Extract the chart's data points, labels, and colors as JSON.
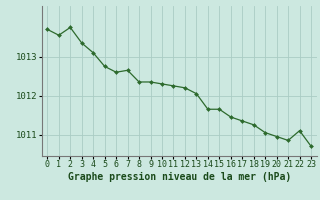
{
  "x": [
    0,
    1,
    2,
    3,
    4,
    5,
    6,
    7,
    8,
    9,
    10,
    11,
    12,
    13,
    14,
    15,
    16,
    17,
    18,
    19,
    20,
    21,
    22,
    23
  ],
  "y": [
    1013.7,
    1013.55,
    1013.75,
    1013.35,
    1013.1,
    1012.75,
    1012.6,
    1012.65,
    1012.35,
    1012.35,
    1012.3,
    1012.25,
    1012.2,
    1012.05,
    1011.65,
    1011.65,
    1011.45,
    1011.35,
    1011.25,
    1011.05,
    1010.95,
    1010.85,
    1011.1,
    1010.7
  ],
  "xlabel": "Graphe pression niveau de la mer (hPa)",
  "ylim": [
    1010.45,
    1014.3
  ],
  "xlim": [
    -0.5,
    23.5
  ],
  "yticks": [
    1011,
    1012,
    1013
  ],
  "xticks": [
    0,
    1,
    2,
    3,
    4,
    5,
    6,
    7,
    8,
    9,
    10,
    11,
    12,
    13,
    14,
    15,
    16,
    17,
    18,
    19,
    20,
    21,
    22,
    23
  ],
  "line_color": "#2d6a2d",
  "marker_color": "#2d6a2d",
  "bg_color": "#cce8e0",
  "grid_color": "#aaccc4",
  "text_color": "#1a4a1a",
  "xlabel_fontsize": 7.0,
  "tick_fontsize": 6.5
}
